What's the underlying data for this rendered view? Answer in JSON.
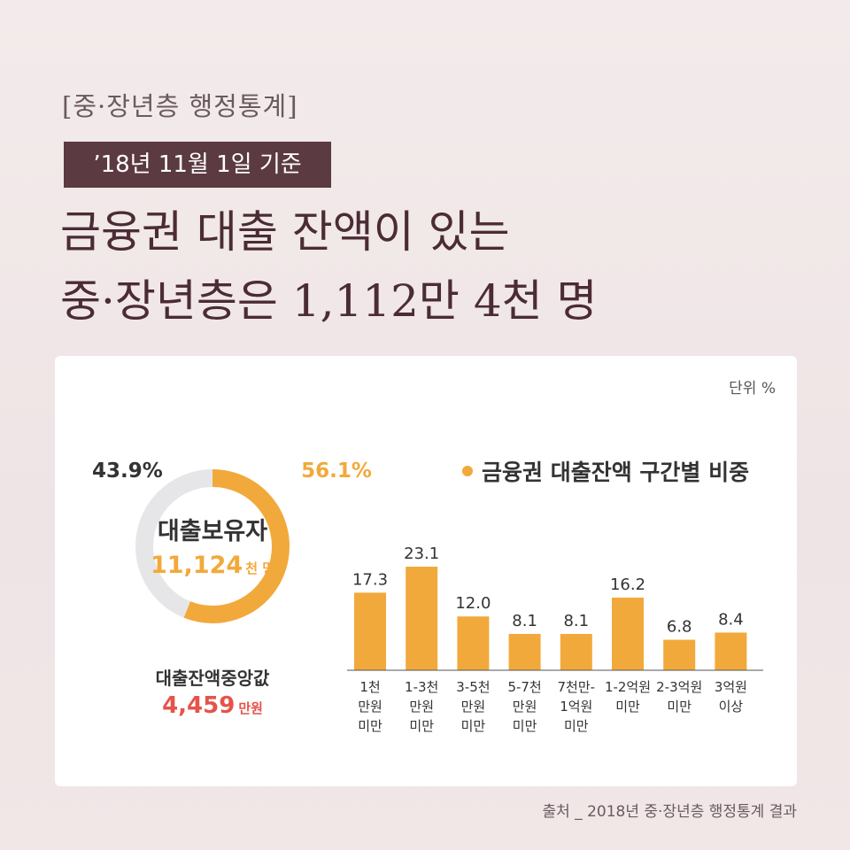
{
  "header": {
    "tag": "[중·장년층 행정통계]",
    "date_badge": "’18년 11월 1일 기준",
    "headline_line1": "금융권 대출 잔액이 있는",
    "headline_line2": "중·장년층은 1,112만 4천 명"
  },
  "card": {
    "unit": "단위 %",
    "legend": "금융권 대출잔액 구간별 비중",
    "median_label": "대출잔액중앙값",
    "median_value": "4,459",
    "median_unit": "만원"
  },
  "source": "출처 _ 2018년 중·장년층 행정통계 결과",
  "colors": {
    "accent": "#f2a93b",
    "ring_bg": "#e6e6e9",
    "badge": "#5b3a41",
    "headline": "#4b2c34",
    "median": "#e5534a"
  },
  "chart_data": [
    {
      "type": "pie",
      "title": "",
      "center_label": "대출보유자",
      "center_value": "11,124",
      "center_unit": "천 명",
      "slices": [
        {
          "label": "56.1%",
          "value": 56.1,
          "color": "#f2a93b"
        },
        {
          "label": "43.9%",
          "value": 43.9,
          "color": "#e6e6e9"
        }
      ]
    },
    {
      "type": "bar",
      "title": "금융권 대출잔액 구간별 비중",
      "categories": [
        [
          "1천",
          "만원",
          "미만"
        ],
        [
          "1-3천",
          "만원",
          "미만"
        ],
        [
          "3-5천",
          "만원",
          "미만"
        ],
        [
          "5-7천",
          "만원",
          "미만"
        ],
        [
          "7천만-",
          "1억원",
          "미만"
        ],
        [
          "1-2억원",
          "미만"
        ],
        [
          "2-3억원",
          "미만"
        ],
        [
          "3억원",
          "이상"
        ]
      ],
      "values": [
        17.3,
        23.1,
        12.0,
        8.1,
        8.1,
        16.2,
        6.8,
        8.4
      ],
      "value_labels": [
        "17.3",
        "23.1",
        "12.0",
        "8.1",
        "8.1",
        "16.2",
        "6.8",
        "8.4"
      ],
      "color": "#f2a93b"
    }
  ]
}
